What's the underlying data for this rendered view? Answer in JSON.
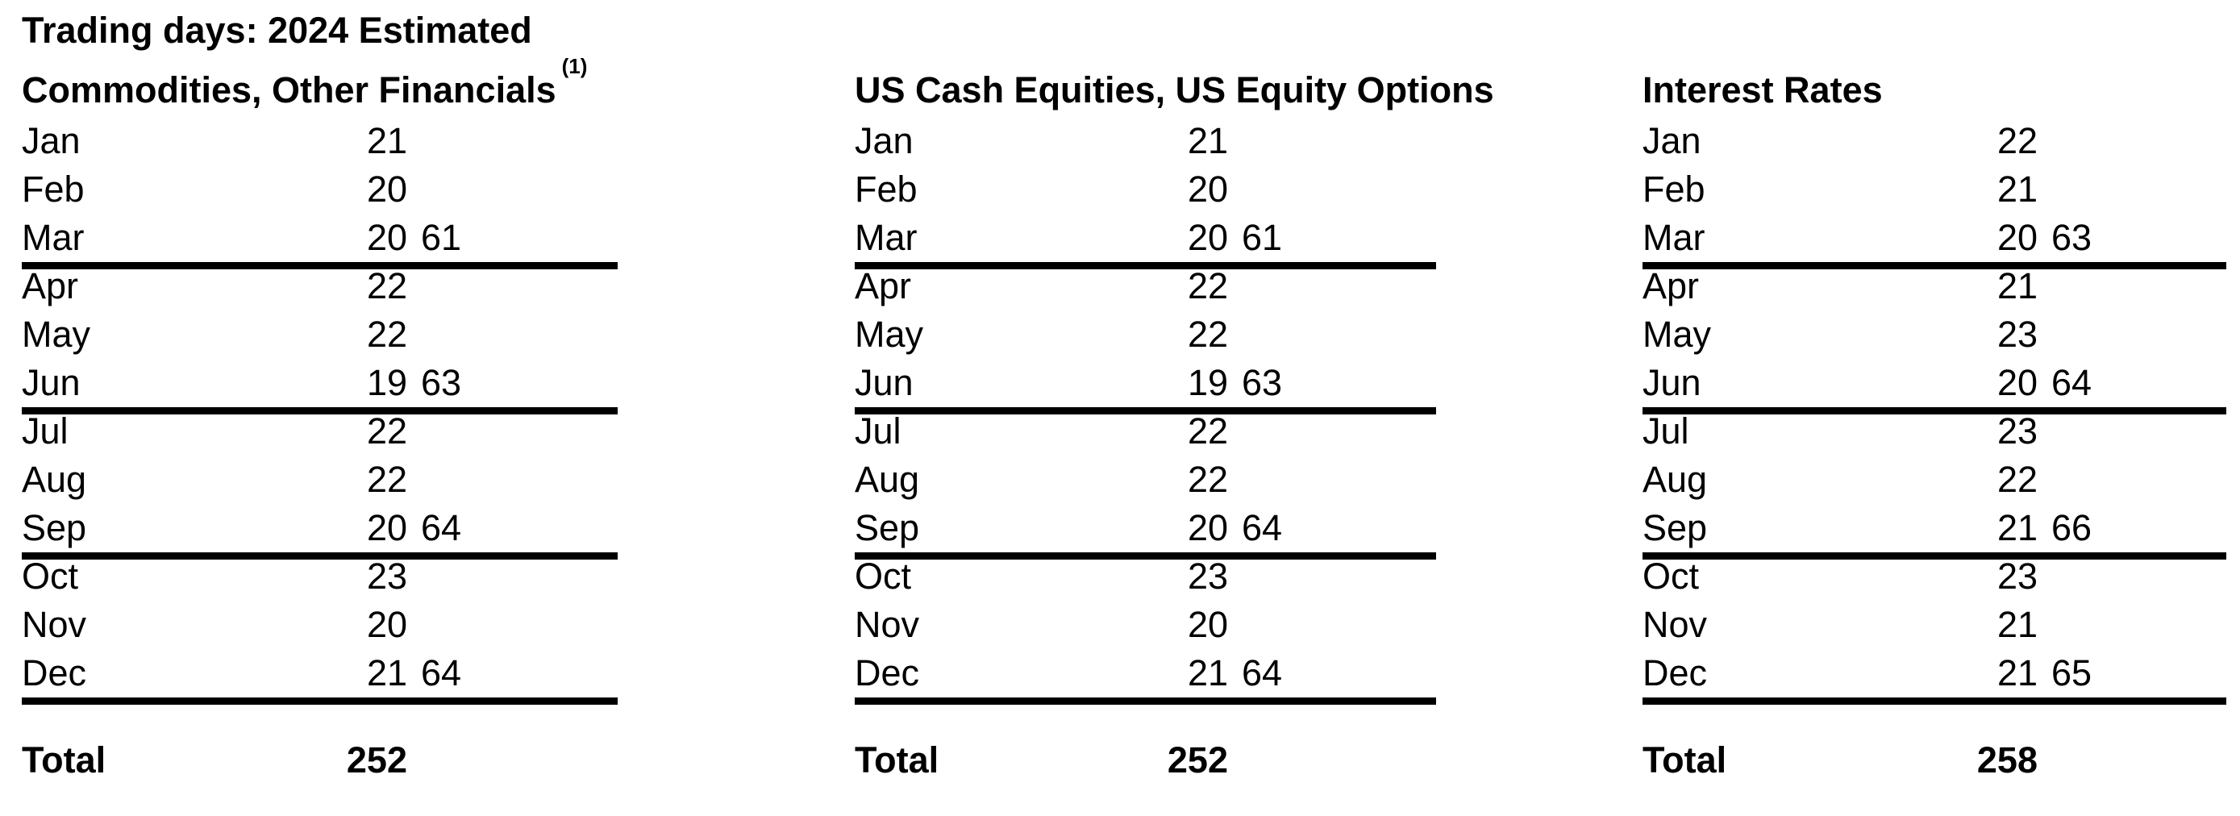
{
  "page_title": "Trading days: 2024 Estimated",
  "colors": {
    "text": "#000000",
    "background": "#ffffff",
    "rule": "#000000"
  },
  "columns": [
    {
      "header": "Commodities, Other Financials",
      "header_superscript": "(1)",
      "rows": [
        {
          "month": "Jan",
          "days": "21",
          "quarter": ""
        },
        {
          "month": "Feb",
          "days": "20",
          "quarter": ""
        },
        {
          "month": "Mar",
          "days": "20",
          "quarter": "61"
        },
        {
          "month": "Apr",
          "days": "22",
          "quarter": ""
        },
        {
          "month": "May",
          "days": "22",
          "quarter": ""
        },
        {
          "month": "Jun",
          "days": "19",
          "quarter": "63"
        },
        {
          "month": "Jul",
          "days": "22",
          "quarter": ""
        },
        {
          "month": "Aug",
          "days": "22",
          "quarter": ""
        },
        {
          "month": "Sep",
          "days": "20",
          "quarter": "64"
        },
        {
          "month": "Oct",
          "days": "23",
          "quarter": ""
        },
        {
          "month": "Nov",
          "days": "20",
          "quarter": ""
        },
        {
          "month": "Dec",
          "days": "21",
          "quarter": "64"
        }
      ],
      "total_label": "Total",
      "total_value": "252"
    },
    {
      "header": "US Cash Equities, US Equity Options",
      "header_superscript": "",
      "rows": [
        {
          "month": "Jan",
          "days": "21",
          "quarter": ""
        },
        {
          "month": "Feb",
          "days": "20",
          "quarter": ""
        },
        {
          "month": "Mar",
          "days": "20",
          "quarter": "61"
        },
        {
          "month": "Apr",
          "days": "22",
          "quarter": ""
        },
        {
          "month": "May",
          "days": "22",
          "quarter": ""
        },
        {
          "month": "Jun",
          "days": "19",
          "quarter": "63"
        },
        {
          "month": "Jul",
          "days": "22",
          "quarter": ""
        },
        {
          "month": "Aug",
          "days": "22",
          "quarter": ""
        },
        {
          "month": "Sep",
          "days": "20",
          "quarter": "64"
        },
        {
          "month": "Oct",
          "days": "23",
          "quarter": ""
        },
        {
          "month": "Nov",
          "days": "20",
          "quarter": ""
        },
        {
          "month": "Dec",
          "days": "21",
          "quarter": "64"
        }
      ],
      "total_label": "Total",
      "total_value": "252"
    },
    {
      "header": "Interest Rates",
      "header_superscript": "",
      "rows": [
        {
          "month": "Jan",
          "days": "22",
          "quarter": ""
        },
        {
          "month": "Feb",
          "days": "21",
          "quarter": ""
        },
        {
          "month": "Mar",
          "days": "20",
          "quarter": "63"
        },
        {
          "month": "Apr",
          "days": "21",
          "quarter": ""
        },
        {
          "month": "May",
          "days": "23",
          "quarter": ""
        },
        {
          "month": "Jun",
          "days": "20",
          "quarter": "64"
        },
        {
          "month": "Jul",
          "days": "23",
          "quarter": ""
        },
        {
          "month": "Aug",
          "days": "22",
          "quarter": ""
        },
        {
          "month": "Sep",
          "days": "21",
          "quarter": "66"
        },
        {
          "month": "Oct",
          "days": "23",
          "quarter": ""
        },
        {
          "month": "Nov",
          "days": "21",
          "quarter": ""
        },
        {
          "month": "Dec",
          "days": "21",
          "quarter": "65"
        }
      ],
      "total_label": "Total",
      "total_value": "258"
    }
  ]
}
